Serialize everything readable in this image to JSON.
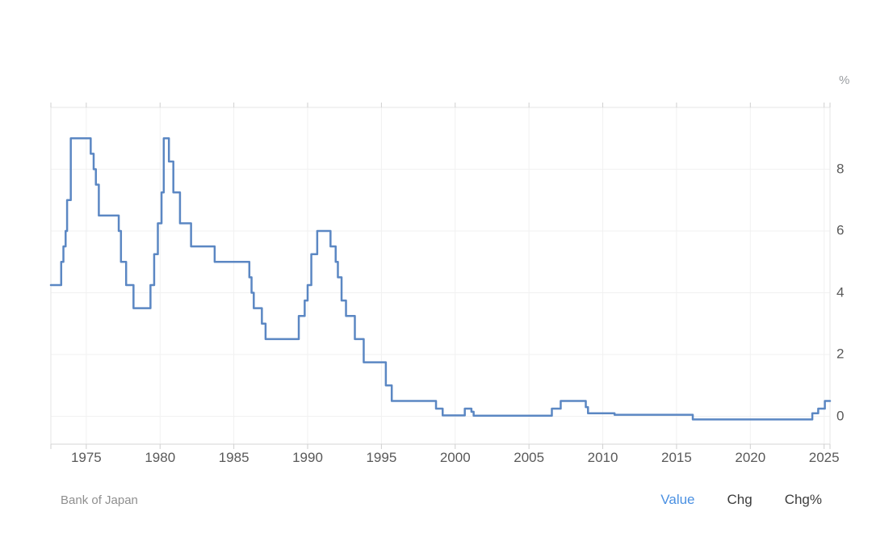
{
  "unit_label": "%",
  "footer": {
    "source": "Bank of Japan",
    "links": [
      {
        "label": "Value",
        "active": true
      },
      {
        "label": "Chg",
        "active": false
      },
      {
        "label": "Chg%",
        "active": false
      }
    ]
  },
  "colors": {
    "line": "#5b87c3",
    "grid": "#f1f1f1",
    "border": "#e6e6e6",
    "axis_bottom": "#d6d6d6",
    "tick": "#cfcfcf",
    "tick_text": "#595959",
    "active_link": "#4a90e2"
  },
  "chart_data": {
    "type": "line",
    "line_style": "step-after",
    "title": "",
    "ylabel": "%",
    "source": "Bank of Japan",
    "legend": "none",
    "grid": true,
    "x_range": [
      1972.6,
      2025.4
    ],
    "y_range": [
      -0.9,
      10.0
    ],
    "x_ticks": [
      1975,
      1980,
      1985,
      1990,
      1995,
      2000,
      2005,
      2010,
      2015,
      2020,
      2025
    ],
    "y_ticks": [
      0,
      2,
      4,
      6,
      8
    ],
    "series": [
      {
        "name": "value",
        "points": [
          [
            1972.6,
            4.25
          ],
          [
            1973.3,
            5.0
          ],
          [
            1973.45,
            5.5
          ],
          [
            1973.6,
            6.0
          ],
          [
            1973.7,
            7.0
          ],
          [
            1973.95,
            9.0
          ],
          [
            1975.3,
            8.5
          ],
          [
            1975.5,
            8.0
          ],
          [
            1975.65,
            7.5
          ],
          [
            1975.85,
            6.5
          ],
          [
            1977.2,
            6.0
          ],
          [
            1977.35,
            5.0
          ],
          [
            1977.7,
            4.25
          ],
          [
            1978.2,
            3.5
          ],
          [
            1979.35,
            4.25
          ],
          [
            1979.6,
            5.25
          ],
          [
            1979.85,
            6.25
          ],
          [
            1980.1,
            7.25
          ],
          [
            1980.25,
            9.0
          ],
          [
            1980.6,
            8.25
          ],
          [
            1980.9,
            7.25
          ],
          [
            1981.35,
            6.25
          ],
          [
            1982.1,
            5.5
          ],
          [
            1983.7,
            5.0
          ],
          [
            1986.05,
            4.5
          ],
          [
            1986.2,
            4.0
          ],
          [
            1986.35,
            3.5
          ],
          [
            1986.9,
            3.0
          ],
          [
            1987.15,
            2.5
          ],
          [
            1989.4,
            3.25
          ],
          [
            1989.8,
            3.75
          ],
          [
            1990.0,
            4.25
          ],
          [
            1990.25,
            5.25
          ],
          [
            1990.65,
            6.0
          ],
          [
            1991.55,
            5.5
          ],
          [
            1991.9,
            5.0
          ],
          [
            1992.05,
            4.5
          ],
          [
            1992.3,
            3.75
          ],
          [
            1992.6,
            3.25
          ],
          [
            1993.2,
            2.5
          ],
          [
            1993.8,
            1.75
          ],
          [
            1995.3,
            1.0
          ],
          [
            1995.7,
            0.5
          ],
          [
            1998.7,
            0.25
          ],
          [
            1999.15,
            0.03
          ],
          [
            2000.65,
            0.25
          ],
          [
            2001.1,
            0.15
          ],
          [
            2001.25,
            0.02
          ],
          [
            2006.55,
            0.25
          ],
          [
            2007.15,
            0.5
          ],
          [
            2008.85,
            0.3
          ],
          [
            2009.0,
            0.1
          ],
          [
            2010.8,
            0.05
          ],
          [
            2016.1,
            -0.1
          ],
          [
            2024.2,
            0.1
          ],
          [
            2024.6,
            0.25
          ],
          [
            2025.05,
            0.5
          ]
        ]
      }
    ]
  }
}
